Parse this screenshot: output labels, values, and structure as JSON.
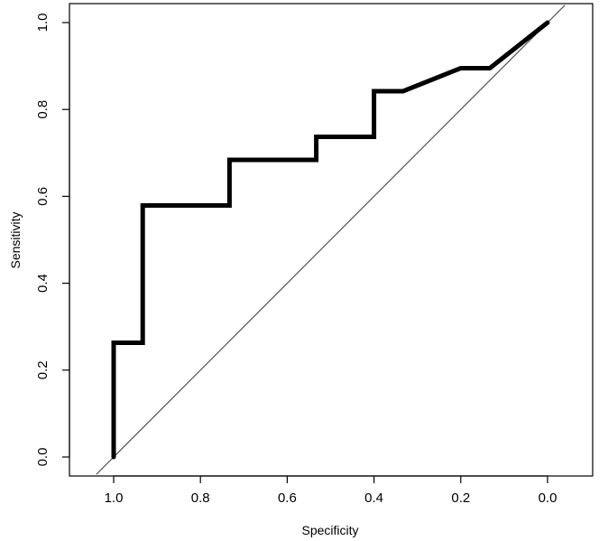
{
  "chart_data": {
    "type": "line",
    "title": "",
    "xlabel": "Specificity",
    "ylabel": "Sensitivity",
    "xlim": [
      1.04,
      -0.1
    ],
    "ylim": [
      -0.04,
      1.04
    ],
    "x_reversed": true,
    "xticks": [
      1.0,
      0.8,
      0.6,
      0.4,
      0.2,
      0.0
    ],
    "xtick_labels": [
      "1.0",
      "0.8",
      "0.6",
      "0.4",
      "0.2",
      "0.0"
    ],
    "yticks": [
      0.0,
      0.2,
      0.4,
      0.6,
      0.8,
      1.0
    ],
    "ytick_labels": [
      "0.0",
      "0.2",
      "0.4",
      "0.6",
      "0.8",
      "1.0"
    ],
    "grid": false,
    "legend": "none",
    "series": [
      {
        "color": "#000000",
        "style": "thick",
        "x": [
          1.0,
          1.0,
          0.933,
          0.933,
          0.733,
          0.733,
          0.533,
          0.533,
          0.4,
          0.4,
          0.333,
          0.2,
          0.133,
          0.0
        ],
        "y": [
          0.0,
          0.263,
          0.263,
          0.579,
          0.579,
          0.684,
          0.684,
          0.737,
          0.737,
          0.842,
          0.842,
          0.895,
          0.895,
          1.0
        ]
      },
      {
        "color": "#555555",
        "style": "thin",
        "reference_line": "diagonal",
        "x": [
          1.04,
          -0.04
        ],
        "y": [
          -0.04,
          1.04
        ]
      }
    ]
  }
}
